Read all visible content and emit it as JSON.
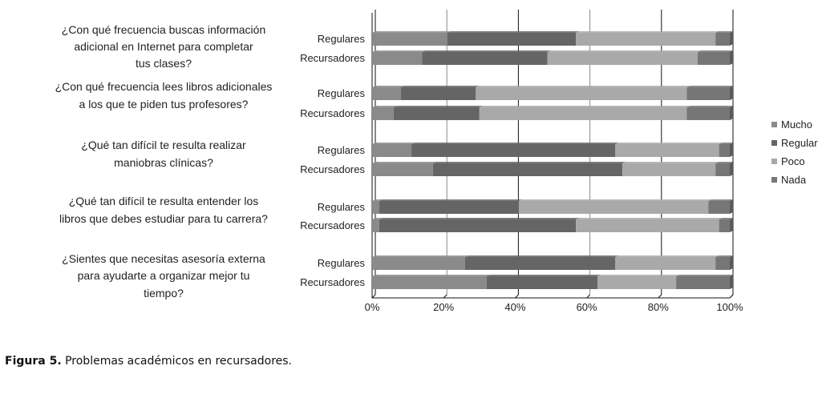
{
  "chart_data": {
    "type": "bar",
    "orientation": "horizontal",
    "stacked": "100%",
    "questions": [
      "¿Con qué frecuencia buscas información adicional en Internet para completar tus clases?",
      "¿Con qué frecuencia lees libros adicionales a los que te piden tus profesores?",
      "¿Qué tan difícil te resulta realizar maniobras clínicas?",
      "¿Qué tan difícil te resulta entender los libros que debes estudiar para tu carrera?",
      "¿Sientes que necesitas asesoría externa para ayudarte a organizar mejor tu tiempo?"
    ],
    "question_lines": [
      [
        "¿Con qué frecuencia buscas información",
        "adicional en Internet para completar",
        "tus clases?"
      ],
      [
        "¿Con qué frecuencia lees libros adicionales",
        "a los que te piden tus profesores?"
      ],
      [
        "¿Qué tan difícil te resulta realizar",
        "maniobras clínicas?"
      ],
      [
        "¿Qué tan difícil te resulta entender los",
        "libros que debes estudiar para tu carrera?"
      ],
      [
        "¿Sientes que necesitas asesoría externa",
        "para ayudarte a organizar mejor tu",
        "tiempo?"
      ]
    ],
    "groups": [
      "Regulares",
      "Recursadores"
    ],
    "series": [
      {
        "name": "Mucho",
        "color": "#8a8a8a",
        "values": [
          [
            21,
            14
          ],
          [
            8,
            6
          ],
          [
            11,
            17
          ],
          [
            2,
            2
          ],
          [
            26,
            32
          ]
        ]
      },
      {
        "name": "Regular",
        "color": "#656565",
        "values": [
          [
            36,
            35
          ],
          [
            21,
            24
          ],
          [
            57,
            53
          ],
          [
            39,
            55
          ],
          [
            42,
            31
          ]
        ]
      },
      {
        "name": "Poco",
        "color": "#a9a9a9",
        "values": [
          [
            39,
            42
          ],
          [
            59,
            58
          ],
          [
            29,
            26
          ],
          [
            53,
            40
          ],
          [
            28,
            22
          ]
        ]
      },
      {
        "name": "Nada",
        "color": "#767676",
        "values": [
          [
            4,
            9
          ],
          [
            12,
            12
          ],
          [
            3,
            4
          ],
          [
            6,
            3
          ],
          [
            4,
            15
          ]
        ]
      }
    ],
    "xticks": [
      "0%",
      "20%",
      "40%",
      "60%",
      "80%",
      "100%"
    ],
    "xlim": [
      0,
      100
    ],
    "grid": true,
    "legend": "right"
  },
  "caption": {
    "label": "Figura 5.",
    "text": " Problemas académicos en recursadores."
  }
}
